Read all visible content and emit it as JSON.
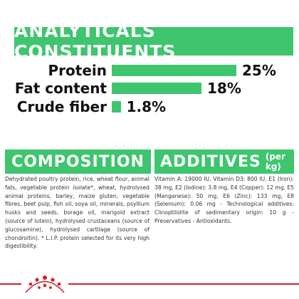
{
  "analytics": {
    "title": "ANALYTICALS CONSTITUENTS",
    "rows": [
      {
        "label": "Protein",
        "value_text": "25%",
        "value": 25
      },
      {
        "label": "Fat content",
        "value_text": "18%",
        "value": 18
      },
      {
        "label": "Crude fiber",
        "value_text": "1.8%",
        "value": 1.8
      }
    ]
  },
  "composition": {
    "title": "COMPOSITION",
    "text": "Dehydrated poultry protein, rice, wheat flour, animal fats, vegetable protein isolate*, wheat, hydrolysed animal proteins, barley, maize gluten, vegetable fibres, beet pulp, fish oil, soya oil, minerals, psyllium husks and seeds, borage oil, marigold extract (source of lutein), hydrolysed crustaceans (source of glucosamine), hydrolysed cartilage (source of chondroitin). * L.I.P. protein selected for its very high digestibility."
  },
  "additives": {
    "title": "ADDITIVES",
    "title_suffix": "(per kg)",
    "text": "Vitamin A: 19000 IU, Vitamin D3: 800 IU, E1 (Iron): 38 mg, E2 (Iodine): 3.8 mg, E4 (Copper): 12 mg, E5 (Manganese): 50 mg, E6 (Zinc): 133 mg, E8 (Selenium): 0.06 mg - Technological additives: Clinoptilolite of sedimentary origin: 10 g - Preservatives - Antioxidants."
  },
  "colors": {
    "accent": "#3ec56e",
    "brand_red": "#d4202a"
  },
  "footer": {
    "logo_icon": "royal-canin-crown-icon"
  }
}
